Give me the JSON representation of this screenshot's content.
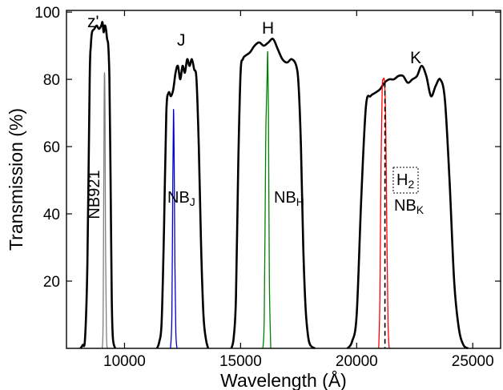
{
  "chart_data": {
    "type": "line",
    "xlabel": "Wavelength (Å)",
    "ylabel": "Transmission (%)",
    "xlim": [
      7500,
      26200
    ],
    "ylim": [
      0,
      100.5
    ],
    "xticks": [
      10000,
      15000,
      20000,
      25000
    ],
    "xtick_labels": [
      "10000",
      "15000",
      "20000",
      "25000"
    ],
    "yticks": [
      20,
      40,
      60,
      80,
      100
    ],
    "ytick_labels": [
      "20",
      "40",
      "60",
      "80",
      "100"
    ],
    "grid": false,
    "legend": "none",
    "colors": {
      "broadband": "#000000",
      "NB921": "#7f7f7f",
      "NBJ": "#0000cc",
      "NBH": "#008000",
      "NBK": "#ff0000",
      "H2": "#000000"
    },
    "series": [
      {
        "band": "z'",
        "x": [
          8100,
          8200,
          8300,
          8400,
          8500,
          8550,
          8600,
          8700,
          8800,
          8900,
          9000,
          9050,
          9100,
          9150,
          9200,
          9250,
          9300,
          9350,
          9400,
          9450,
          9500,
          9600
        ],
        "y": [
          0,
          1,
          3,
          25,
          80,
          90,
          94,
          95,
          96,
          95,
          96,
          97,
          94,
          96,
          95,
          92,
          90,
          80,
          50,
          15,
          3,
          0
        ]
      },
      {
        "band": "J",
        "x": [
          11400,
          11500,
          11600,
          11700,
          11800,
          11900,
          12000,
          12100,
          12200,
          12300,
          12400,
          12500,
          12600,
          12700,
          12800,
          12900,
          13000,
          13100,
          13200,
          13300,
          13400,
          13500,
          13600
        ],
        "y": [
          0,
          2,
          8,
          35,
          70,
          76,
          75,
          77,
          82,
          84,
          80,
          84,
          82,
          86,
          84,
          86,
          83,
          80,
          60,
          30,
          10,
          3,
          0
        ]
      },
      {
        "band": "H",
        "x": [
          14600,
          14700,
          14800,
          14900,
          15000,
          15100,
          15200,
          15400,
          15600,
          15800,
          16000,
          16200,
          16400,
          16600,
          16800,
          17000,
          17200,
          17400,
          17500,
          17600,
          17700,
          17800,
          17900,
          18000,
          18200
        ],
        "y": [
          0,
          3,
          15,
          55,
          82,
          86,
          87,
          88,
          90,
          91,
          90,
          91,
          92,
          89,
          86,
          85,
          86,
          84,
          78,
          60,
          30,
          12,
          4,
          1,
          0
        ]
      },
      {
        "band": "K",
        "x": [
          19600,
          19800,
          20000,
          20200,
          20400,
          20600,
          20800,
          21000,
          21200,
          21400,
          21600,
          21800,
          22000,
          22200,
          22400,
          22600,
          22800,
          23000,
          23200,
          23400,
          23600,
          23800,
          24000,
          24200,
          24400,
          24600,
          24800
        ],
        "y": [
          0,
          2,
          10,
          45,
          72,
          75,
          76,
          77,
          79,
          80,
          80,
          81,
          81,
          79,
          80,
          81,
          84,
          81,
          75,
          78,
          80,
          74,
          50,
          20,
          6,
          1,
          0
        ]
      },
      {
        "band": "NB921",
        "x": [
          9040,
          9080,
          9120,
          9140,
          9160,
          9180,
          9220,
          9260
        ],
        "y": [
          0,
          10,
          70,
          82,
          70,
          35,
          5,
          0
        ]
      },
      {
        "band": "NBJ",
        "x": [
          11980,
          12040,
          12080,
          12110,
          12140,
          12170,
          12210,
          12260
        ],
        "y": [
          0,
          10,
          50,
          71,
          55,
          25,
          5,
          0
        ]
      },
      {
        "band": "NBH",
        "x": [
          15960,
          16020,
          16080,
          16110,
          16140,
          16170,
          16200,
          16240,
          16300
        ],
        "y": [
          0,
          10,
          60,
          72,
          80,
          88,
          70,
          20,
          0
        ]
      },
      {
        "band": "NBK",
        "x": [
          20950,
          21000,
          21050,
          21100,
          21150,
          21200,
          21250,
          21300,
          21350,
          21400
        ],
        "y": [
          0,
          15,
          55,
          77,
          80,
          79,
          68,
          35,
          8,
          0
        ]
      }
    ],
    "h2_line": {
      "x": 21218,
      "y_top": 79
    },
    "annotations": {
      "zprime": "z'",
      "J": "J",
      "H": "H",
      "K": "K",
      "NB921": "NB921",
      "NBJ_main": "NB",
      "NBJ_sub": "J",
      "NBH_main": "NB",
      "NBH_sub": "H",
      "NBK_main": "NB",
      "NBK_sub": "K",
      "H2_main": "H",
      "H2_sub": "2"
    }
  }
}
